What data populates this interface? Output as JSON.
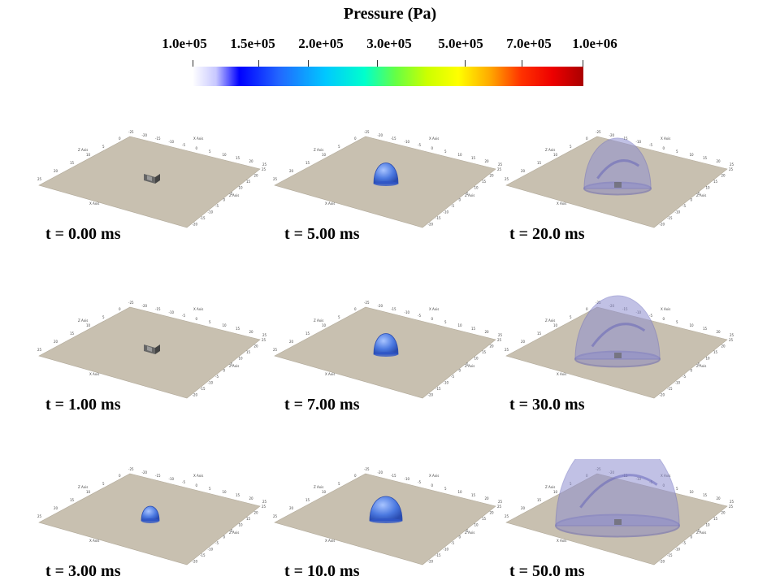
{
  "colorbar": {
    "title": "Pressure (Pa)",
    "ticks": [
      "1.0e+05",
      "1.5e+05",
      "2.0e+05",
      "3.0e+05",
      "5.0e+05",
      "7.0e+05",
      "1.0e+06"
    ]
  },
  "axis_labels": {
    "x": "X Axis",
    "y": "Y Axis",
    "z": "Z Axis"
  },
  "axis_ticks_x": [
    "-25",
    "-20",
    "-15",
    "-10",
    "-5",
    "0",
    "5",
    "10",
    "15",
    "20",
    "25"
  ],
  "axis_ticks_z": [
    "25",
    "20",
    "15",
    "10",
    "5",
    "0",
    "-5",
    "-10",
    "-15",
    "-20"
  ],
  "colors": {
    "ground": "#c8c0b0",
    "bubble": "#8f8fd0",
    "obstacle": "#666666"
  },
  "panels": [
    {
      "label": "t = 0.00 ms",
      "stage": "initial"
    },
    {
      "label": "t = 5.00 ms",
      "stage": "bubble-small"
    },
    {
      "label": "t = 20.0 ms",
      "stage": "dome-medium"
    },
    {
      "label": "t = 1.00 ms",
      "stage": "initial"
    },
    {
      "label": "t = 7.00 ms",
      "stage": "bubble-small"
    },
    {
      "label": "t = 30.0 ms",
      "stage": "dome-large"
    },
    {
      "label": "t = 3.00 ms",
      "stage": "bubble-tiny"
    },
    {
      "label": "t = 10.0 ms",
      "stage": "bubble-medium"
    },
    {
      "label": "t = 50.0 ms",
      "stage": "dome-xlarge"
    }
  ]
}
